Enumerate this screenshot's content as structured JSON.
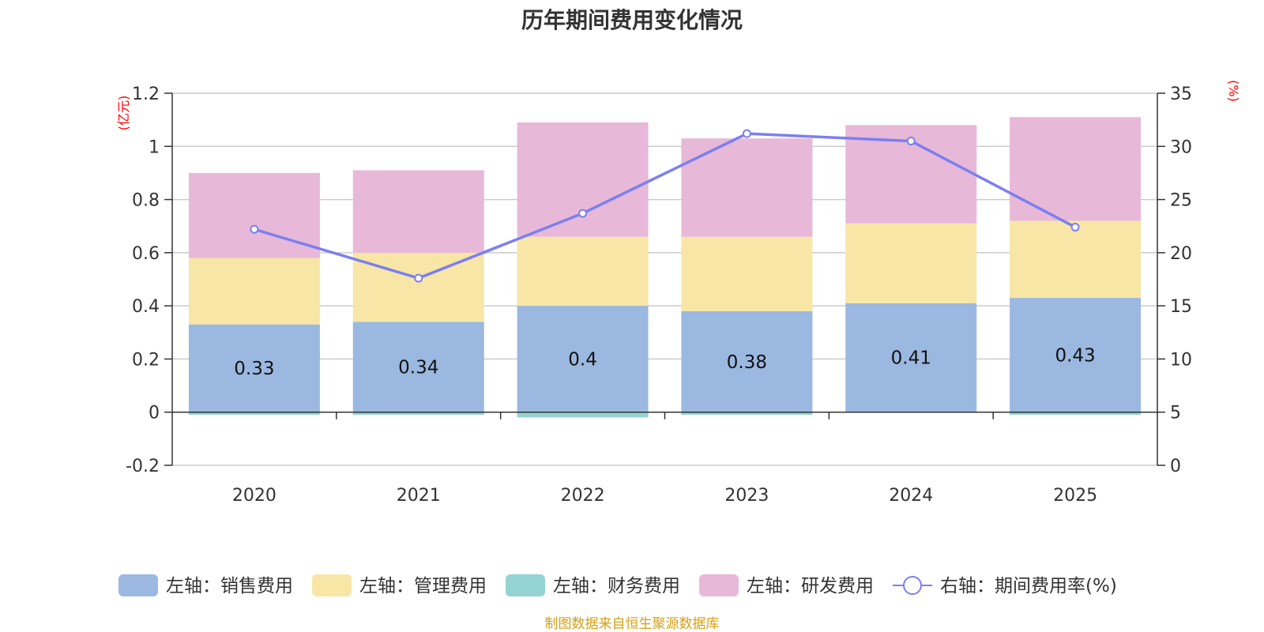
{
  "chart_data": {
    "type": "bar",
    "stacked": true,
    "title": "历年期间费用变化情况",
    "categories": [
      "2020",
      "2021",
      "2022",
      "2023",
      "2024",
      "2025"
    ],
    "y_left": {
      "unit": "(亿元)",
      "ylim": [
        -0.2,
        1.2
      ],
      "ticks": [
        "-0.2",
        "0",
        "0.2",
        "0.4",
        "0.6",
        "0.8",
        "1",
        "1.2"
      ]
    },
    "y_right": {
      "unit": "(%)",
      "ylim": [
        0,
        35
      ],
      "ticks": [
        "0",
        "5",
        "10",
        "15",
        "20",
        "25",
        "30",
        "35"
      ]
    },
    "series": [
      {
        "name": "左轴：销售费用",
        "axis": "left",
        "type": "bar",
        "color": "#9bb8e0",
        "values": [
          0.33,
          0.34,
          0.4,
          0.38,
          0.41,
          0.43
        ],
        "labels": [
          "0.33",
          "0.34",
          "0.4",
          "0.38",
          "0.41",
          "0.43"
        ]
      },
      {
        "name": "左轴：管理费用",
        "axis": "left",
        "type": "bar",
        "color": "#f7e6a6",
        "values": [
          0.25,
          0.26,
          0.26,
          0.28,
          0.3,
          0.29
        ]
      },
      {
        "name": "左轴：财务费用",
        "axis": "left",
        "type": "bar",
        "color": "#94d3d3",
        "values": [
          -0.01,
          -0.01,
          -0.02,
          -0.01,
          0.0,
          -0.01
        ]
      },
      {
        "name": "左轴：研发费用",
        "axis": "left",
        "type": "bar",
        "color": "#e8b8d9",
        "values": [
          0.32,
          0.31,
          0.43,
          0.37,
          0.37,
          0.39
        ]
      },
      {
        "name": "右轴：期间费用率(%)",
        "axis": "right",
        "type": "line",
        "color": "#7b7ff0",
        "values": [
          22.2,
          17.6,
          23.7,
          31.2,
          30.5,
          22.4
        ]
      }
    ],
    "legend_position": "bottom",
    "grid": true
  },
  "colors": {
    "unit_label": "#ff0000",
    "source_text": "#d4a017",
    "axis": "#333333",
    "grid": "#cccccc"
  },
  "source": "制图数据来自恒生聚源数据库"
}
